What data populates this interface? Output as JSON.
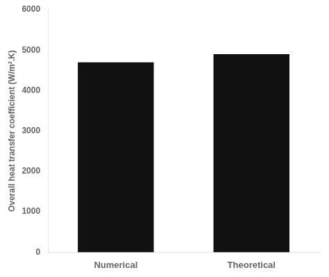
{
  "chart_data": {
    "type": "bar",
    "categories": [
      "Numerical",
      "Theoretical"
    ],
    "values": [
      4700,
      4900
    ],
    "color": "#111111",
    "ylabel": "Overall heat transfer coefficient (W/m².K)",
    "ylim": [
      0,
      6000
    ],
    "yticks": [
      0,
      1000,
      2000,
      3000,
      4000,
      5000,
      6000
    ],
    "grid": false
  }
}
